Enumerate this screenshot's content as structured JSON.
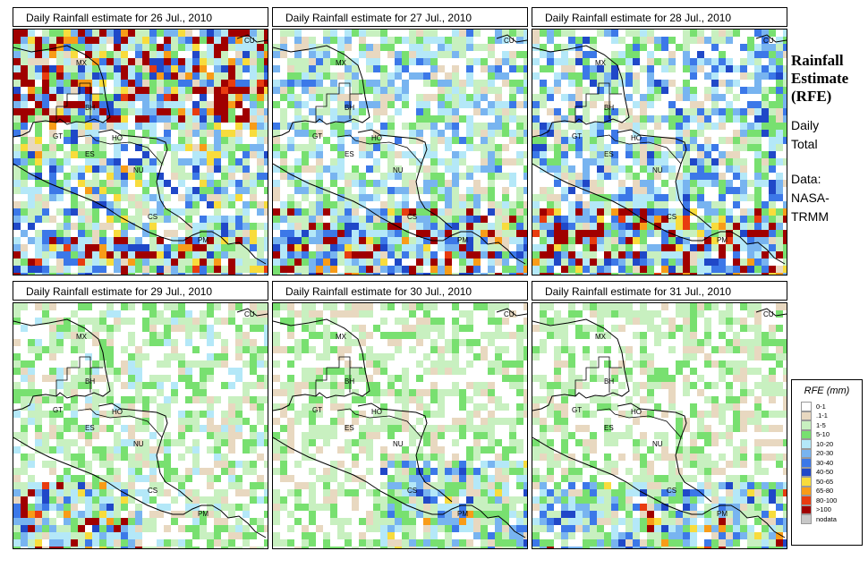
{
  "panels": [
    {
      "title": "Daily Rainfall estimate for  26 Jul., 2010",
      "seed": 26,
      "intensity": 1.2,
      "hot": "north"
    },
    {
      "title": "Daily Rainfall estimate for  27 Jul., 2010",
      "seed": 27,
      "intensity": 1.0,
      "hot": "south"
    },
    {
      "title": "Daily Rainfall estimate for  28 Jul., 2010",
      "seed": 28,
      "intensity": 1.1,
      "hot": "south"
    },
    {
      "title": "Daily Rainfall estimate for  29 Jul., 2010",
      "seed": 29,
      "intensity": 0.8,
      "hot": "southwest"
    },
    {
      "title": "Daily Rainfall estimate for  30 Jul., 2010",
      "seed": 30,
      "intensity": 0.7,
      "hot": "southeast"
    },
    {
      "title": "Daily Rainfall estimate for  31 Jul., 2010",
      "seed": 31,
      "intensity": 0.7,
      "hot": "south"
    }
  ],
  "country_labels": [
    "CU",
    "MX",
    "BH",
    "GT",
    "HO",
    "ES",
    "NU",
    "CS",
    "PM"
  ],
  "side": {
    "title_line1": "Rainfall",
    "title_line2": "Estimate",
    "title_line3": "(RFE)",
    "daily_line1": "Daily",
    "daily_line2": "Total",
    "data_line1": "Data:",
    "data_line2": "NASA-",
    "data_line3": "TRMM"
  },
  "legend": {
    "title": "RFE (mm)",
    "items": [
      {
        "label": "0-1",
        "color": "#ffffff"
      },
      {
        "label": ".1-1",
        "color": "#e8d8c0"
      },
      {
        "label": "1-5",
        "color": "#c8f0c0"
      },
      {
        "label": "5-10",
        "color": "#78e070"
      },
      {
        "label": "10-20",
        "color": "#b4e8f8"
      },
      {
        "label": "20-30",
        "color": "#78b4f0"
      },
      {
        "label": "30-40",
        "color": "#3c78e8"
      },
      {
        "label": "40-50",
        "color": "#2048c8"
      },
      {
        "label": "50-65",
        "color": "#f8dc3c"
      },
      {
        "label": "65-80",
        "color": "#f89c18"
      },
      {
        "label": "80-100",
        "color": "#e83c10"
      },
      {
        "label": ">100",
        "color": "#a00000"
      },
      {
        "label": "nodata",
        "color": "#c8c8c8"
      }
    ]
  }
}
